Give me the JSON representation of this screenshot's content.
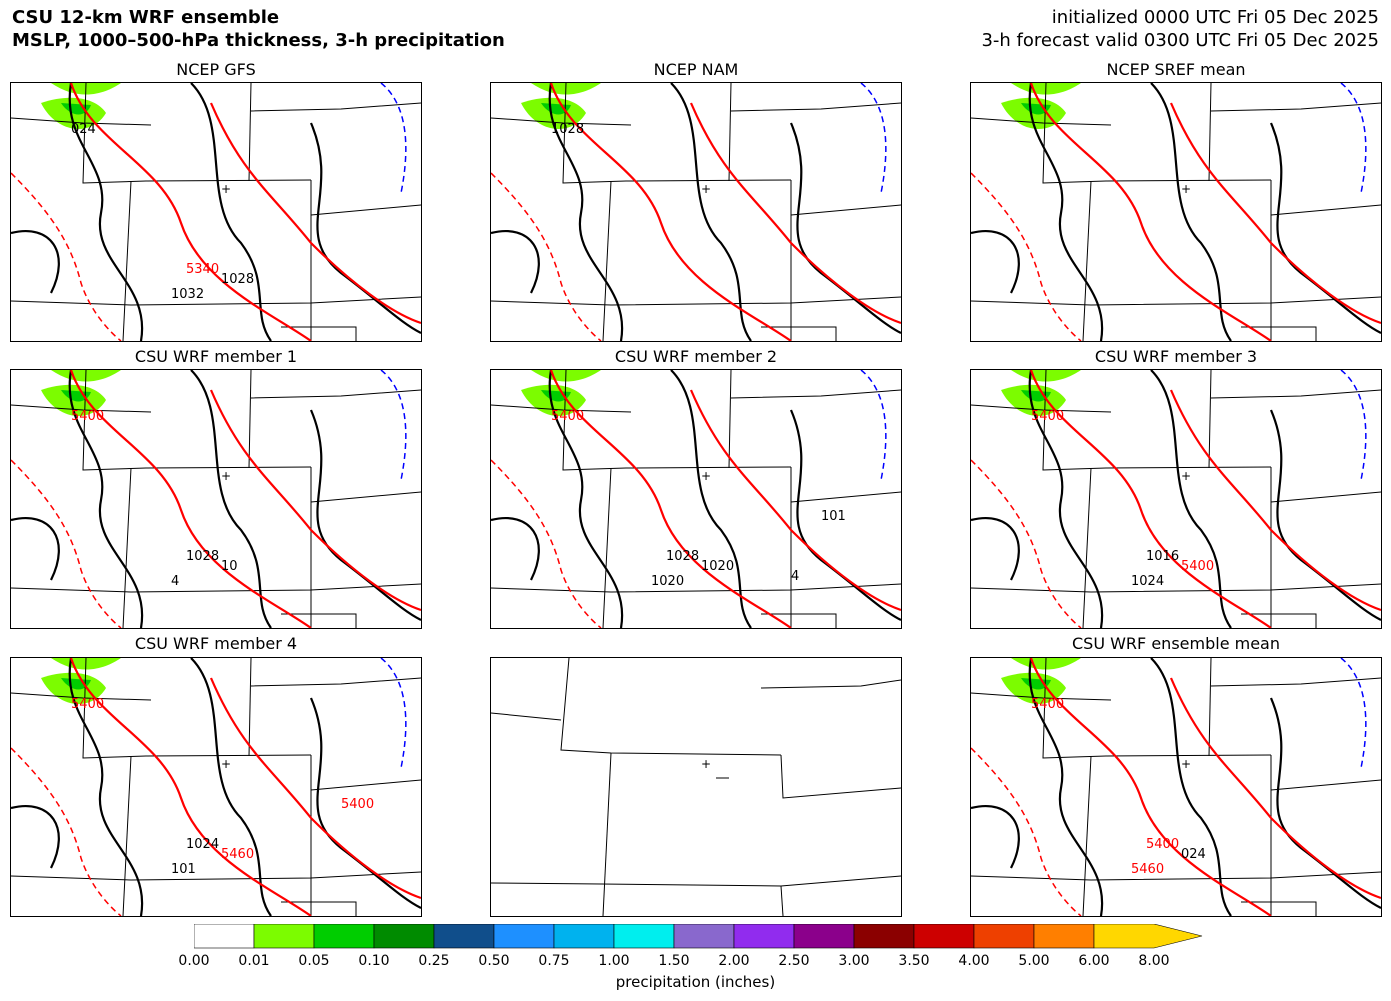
{
  "header": {
    "title_line1": "CSU 12-km WRF ensemble",
    "title_line2": "MSLP, 1000–500-hPa thickness, 3-h precipitation",
    "init_line": "initialized 0000 UTC Fri 05 Dec 2025",
    "valid_line": "3-h forecast valid 0300 UTC Fri 05 Dec 2025"
  },
  "panels": [
    {
      "title": "NCEP GFS",
      "labels": [
        "024",
        "5340",
        "1032",
        "1028"
      ]
    },
    {
      "title": "NCEP NAM",
      "labels": [
        "1028"
      ]
    },
    {
      "title": "NCEP SREF mean",
      "labels": []
    },
    {
      "title": "CSU WRF member 1",
      "labels": [
        "5400",
        "1028",
        "4",
        "10"
      ]
    },
    {
      "title": "CSU WRF member 2",
      "labels": [
        "5400",
        "1028",
        "1020",
        "1020",
        "101",
        "4"
      ]
    },
    {
      "title": "CSU WRF member 3",
      "labels": [
        "5400",
        "1016",
        "1024",
        "5400"
      ]
    },
    {
      "title": "CSU WRF member 4",
      "labels": [
        "5400",
        "1024",
        "101",
        "5460",
        "5400"
      ]
    },
    {
      "title": "",
      "labels": []
    },
    {
      "title": "CSU WRF ensemble mean",
      "labels": [
        "5400",
        "5400",
        "5460",
        "024"
      ]
    }
  ],
  "colorbar": {
    "label": "precipitation (inches)",
    "ticks": [
      "0.00",
      "0.01",
      "0.05",
      "0.10",
      "0.25",
      "0.50",
      "0.75",
      "1.00",
      "1.50",
      "2.00",
      "2.50",
      "3.00",
      "3.50",
      "4.00",
      "5.00",
      "6.00",
      "8.00"
    ],
    "colors": [
      "#ffffff",
      "#7cfc00",
      "#00cd00",
      "#008b00",
      "#104e8b",
      "#1e90ff",
      "#00b2ee",
      "#00eeee",
      "#8968cd",
      "#912cee",
      "#8b008b",
      "#8b0000",
      "#cd0000",
      "#ee4000",
      "#ff7f00",
      "#ffd700"
    ]
  },
  "style": {
    "mslp_color": "#000000",
    "thickness_color": "#ff0000",
    "thickness_540_color": "#0000ff"
  }
}
